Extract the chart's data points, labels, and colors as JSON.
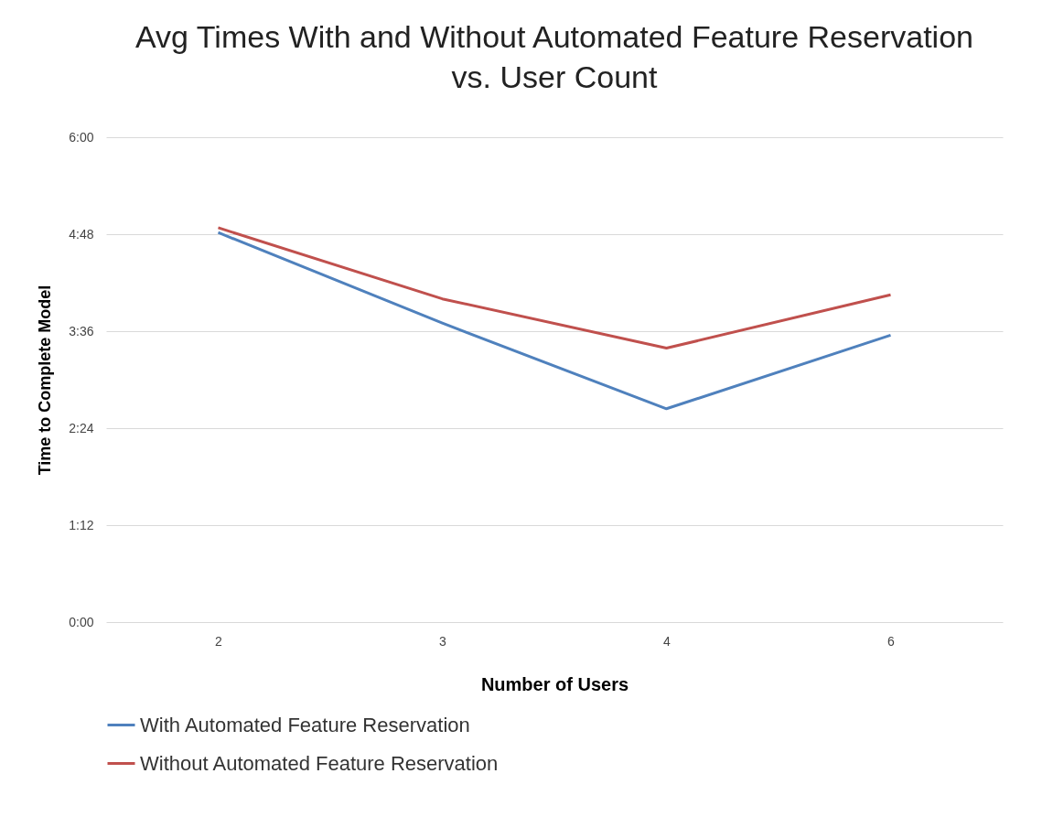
{
  "chart_data": {
    "type": "line",
    "title": "Avg Times With and Without Automated Feature Reservation vs. User Count",
    "xlabel": "Number of Users",
    "ylabel": "Time to Complete Model",
    "categories": [
      "2",
      "3",
      "4",
      "6"
    ],
    "series": [
      {
        "name": "With Automated Feature Reservation",
        "color": "#4f81bd",
        "values": [
          4.82,
          3.7,
          2.64,
          3.55
        ]
      },
      {
        "name": "Without Automated Feature Reservation",
        "color": "#c0504d",
        "values": [
          4.88,
          4.0,
          3.39,
          4.05
        ]
      }
    ],
    "ylim": [
      0,
      6
    ],
    "yticks": [
      {
        "value": 0,
        "label": "0:00"
      },
      {
        "value": 1.2,
        "label": "1:12"
      },
      {
        "value": 2.4,
        "label": "2:24"
      },
      {
        "value": 3.6,
        "label": "3:36"
      },
      {
        "value": 4.8,
        "label": "4:48"
      },
      {
        "value": 6,
        "label": "6:00"
      }
    ],
    "grid": "y",
    "legend": "bottom",
    "marker": "none",
    "line_style": "solid"
  }
}
